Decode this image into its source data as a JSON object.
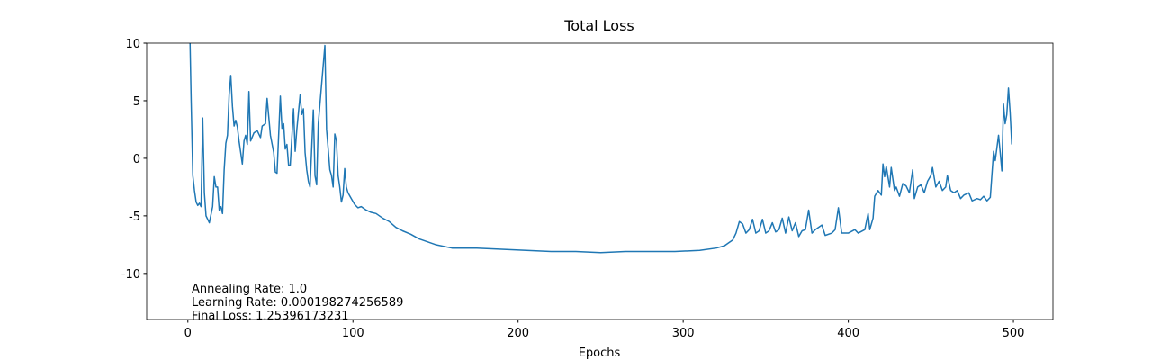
{
  "chart_data": {
    "type": "line",
    "title": "Total Loss",
    "x_label": "Epochs",
    "x": [
      0,
      2,
      3,
      4,
      5,
      6,
      7,
      8,
      9,
      10,
      11,
      13,
      15,
      16,
      17,
      18,
      19,
      20,
      21,
      22,
      23,
      24,
      25,
      26,
      27,
      28,
      29,
      30,
      31,
      32,
      33,
      34,
      35,
      36,
      37,
      38,
      40,
      42,
      44,
      45,
      47,
      48,
      49,
      50,
      52,
      53,
      54,
      56,
      57,
      58,
      59,
      60,
      61,
      62,
      64,
      65,
      66,
      68,
      69,
      70,
      71,
      72,
      73,
      74,
      76,
      77,
      78,
      79,
      83,
      84,
      85,
      86,
      87,
      88,
      89,
      90,
      91,
      92,
      93,
      94,
      95,
      96,
      97,
      99,
      101,
      103,
      105,
      108,
      111,
      114,
      118,
      122,
      126,
      130,
      135,
      140,
      150,
      160,
      175,
      190,
      205,
      220,
      235,
      250,
      265,
      280,
      295,
      310,
      320,
      325,
      328,
      330,
      332,
      334,
      336,
      338,
      340,
      342,
      344,
      346,
      348,
      350,
      352,
      354,
      356,
      358,
      360,
      362,
      364,
      366,
      368,
      370,
      372,
      374,
      376,
      378,
      380,
      384,
      386,
      390,
      392,
      394,
      396,
      400,
      404,
      406,
      410,
      412,
      413,
      415,
      416,
      418,
      420,
      421,
      422,
      423,
      425,
      426,
      428,
      429,
      431,
      433,
      435,
      437,
      439,
      440,
      442,
      444,
      446,
      448,
      450,
      451,
      453,
      455,
      457,
      459,
      460,
      462,
      464,
      466,
      468,
      470,
      473,
      475,
      478,
      480,
      482,
      484,
      486,
      488,
      489,
      491,
      492,
      493,
      494,
      495,
      496,
      497,
      498,
      499
    ],
    "values": [
      20,
      5,
      -1.5,
      -2.8,
      -3.8,
      -4.1,
      -3.9,
      -4.2,
      3.5,
      -3,
      -5,
      -5.6,
      -4.2,
      -1.6,
      -2.5,
      -2.5,
      -4.5,
      -4.2,
      -4.8,
      -1,
      1.3,
      2,
      5.5,
      7.2,
      4.5,
      2.8,
      3.3,
      2.7,
      1.5,
      0.5,
      -0.5,
      1.5,
      2.0,
      1.2,
      5.8,
      1.5,
      2.2,
      2.4,
      1.8,
      2.8,
      3.0,
      5.2,
      3.6,
      2.0,
      0.5,
      -1.2,
      -1.3,
      5.4,
      2.6,
      3.0,
      0.8,
      1.2,
      -0.6,
      -0.6,
      4.3,
      0.6,
      2.5,
      5.5,
      3.8,
      4.3,
      0.5,
      -1,
      -2,
      -2.5,
      4.2,
      -1.5,
      -2.3,
      3.0,
      9.8,
      2.5,
      0.8,
      -1,
      -1.5,
      -2.5,
      2.1,
      1.5,
      -1.5,
      -2.5,
      -3.8,
      -3.2,
      -0.9,
      -2.5,
      -3,
      -3.5,
      -4,
      -4.3,
      -4.2,
      -4.5,
      -4.7,
      -4.8,
      -5.2,
      -5.5,
      -6,
      -6.3,
      -6.6,
      -7,
      -7.5,
      -7.8,
      -7.8,
      -7.9,
      -8,
      -8.1,
      -8.1,
      -8.2,
      -8.1,
      -8.1,
      -8.1,
      -8,
      -7.8,
      -7.6,
      -7.3,
      -7.1,
      -6.5,
      -5.5,
      -5.7,
      -6.5,
      -6.2,
      -5.3,
      -6.5,
      -6.3,
      -5.3,
      -6.5,
      -6.3,
      -5.6,
      -6.4,
      -6.2,
      -5.2,
      -6.5,
      -5.1,
      -6.3,
      -5.6,
      -6.8,
      -6.3,
      -6.2,
      -4.5,
      -6.5,
      -6.2,
      -5.8,
      -6.7,
      -6.5,
      -6.2,
      -4.3,
      -6.5,
      -6.5,
      -6.2,
      -6.5,
      -6.2,
      -4.8,
      -6.2,
      -5.2,
      -3.3,
      -2.8,
      -3.2,
      -0.5,
      -1.6,
      -0.7,
      -2.5,
      -0.8,
      -2.8,
      -2.5,
      -3.3,
      -2.2,
      -2.4,
      -3.0,
      -1.0,
      -3.5,
      -2.5,
      -2.3,
      -3.0,
      -2.0,
      -1.5,
      -0.8,
      -2.5,
      -2.0,
      -2.8,
      -2.5,
      -1.5,
      -2.8,
      -3,
      -2.8,
      -3.5,
      -3.2,
      -3.0,
      -3.7,
      -3.5,
      -3.6,
      -3.3,
      -3.7,
      -3.4,
      0.6,
      -0.2,
      2.0,
      0.5,
      -1.1,
      4.7,
      3.0,
      3.8,
      6.1,
      4.0,
      1.2
    ],
    "color": "#1f77b4",
    "xlim": [
      -24.95,
      523.95
    ],
    "xticks": [
      0,
      100,
      200,
      300,
      400,
      500
    ],
    "ylim": [
      -14,
      10
    ],
    "yticks": [
      -10,
      -5,
      0,
      5,
      10
    ],
    "grid": false,
    "annotations": [
      "Annealing Rate: 1.0",
      "Learning Rate: 0.000198274256589",
      "Final Loss: 1.25396173231"
    ]
  }
}
